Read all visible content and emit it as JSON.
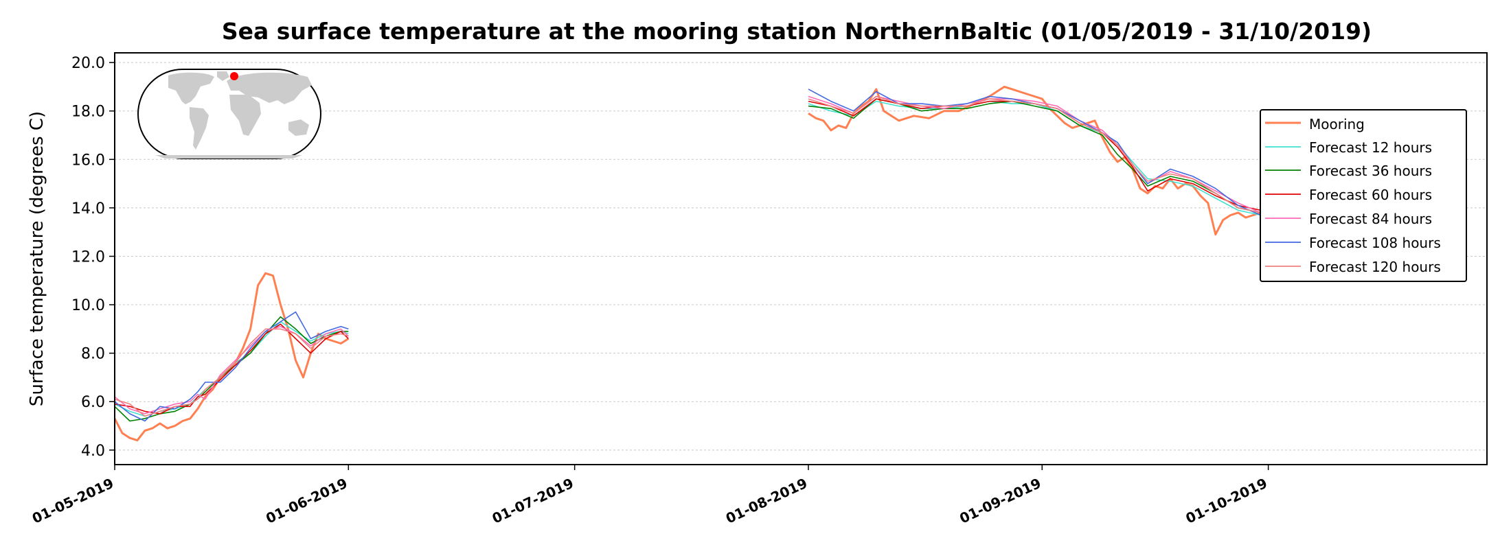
{
  "chart_data": {
    "type": "line",
    "title": "Sea surface temperature at the mooring station NorthernBaltic (01/05/2019 - 31/10/2019)",
    "xlabel": "",
    "ylabel": "Surface temperature (degrees C)",
    "xlim": [
      "2019-05-01",
      "2019-10-31"
    ],
    "ylim": [
      3.4,
      20.4
    ],
    "yticks": [
      4.0,
      6.0,
      8.0,
      10.0,
      12.0,
      14.0,
      16.0,
      18.0,
      20.0
    ],
    "ytick_labels": [
      "4.0",
      "6.0",
      "8.0",
      "10.0",
      "12.0",
      "14.0",
      "16.0",
      "18.0",
      "20.0"
    ],
    "xticks": [
      "2019-05-01",
      "2019-06-01",
      "2019-07-01",
      "2019-08-01",
      "2019-09-01",
      "2019-10-01"
    ],
    "xtick_labels": [
      "01-05-2019",
      "01-06-2019",
      "01-07-2019",
      "01-08-2019",
      "01-09-2019",
      "01-10-2019"
    ],
    "grid": "horizontal dotted",
    "legend_position": "right",
    "inset": "world-map-with-station-marker",
    "colors": {
      "mooring": "#ff7f50",
      "f12": "#40e0d0",
      "f36": "#008000",
      "f60": "#e00000",
      "f84": "#ff69b4",
      "f108": "#4169e1",
      "f120": "#f08080",
      "grid": "#c8c8c8",
      "land": "#cccccc",
      "marker": "#ff0000"
    },
    "series": [
      {
        "name": "Mooring",
        "color": "#ff7f50",
        "width": 3,
        "segments": [
          {
            "x": [
              "2019-05-01",
              "2019-05-02",
              "2019-05-03",
              "2019-05-04",
              "2019-05-05",
              "2019-05-06",
              "2019-05-07",
              "2019-05-08",
              "2019-05-09",
              "2019-05-10",
              "2019-05-11",
              "2019-05-12",
              "2019-05-13",
              "2019-05-14",
              "2019-05-15",
              "2019-05-16",
              "2019-05-17",
              "2019-05-18",
              "2019-05-19",
              "2019-05-20",
              "2019-05-21",
              "2019-05-22",
              "2019-05-23",
              "2019-05-24",
              "2019-05-25",
              "2019-05-26",
              "2019-05-27",
              "2019-05-28",
              "2019-05-29",
              "2019-05-30",
              "2019-05-31",
              "2019-06-01"
            ],
            "y": [
              5.3,
              4.7,
              4.5,
              4.4,
              4.8,
              4.9,
              5.1,
              4.9,
              5.0,
              5.2,
              5.3,
              5.7,
              6.2,
              6.5,
              7.0,
              7.3,
              7.6,
              8.2,
              9.0,
              10.8,
              11.3,
              11.2,
              10.0,
              9.0,
              7.7,
              7.0,
              8.0,
              8.8,
              8.6,
              8.5,
              8.4,
              8.6
            ]
          },
          {
            "x": [
              "2019-08-01",
              "2019-08-02",
              "2019-08-03",
              "2019-08-04",
              "2019-08-05",
              "2019-08-06",
              "2019-08-07",
              "2019-08-08",
              "2019-08-09",
              "2019-08-10",
              "2019-08-11",
              "2019-08-13",
              "2019-08-15",
              "2019-08-17",
              "2019-08-19",
              "2019-08-21",
              "2019-08-23",
              "2019-08-25",
              "2019-08-27",
              "2019-08-28",
              "2019-08-29",
              "2019-08-30",
              "2019-08-31",
              "2019-09-01",
              "2019-09-02",
              "2019-09-03",
              "2019-09-04",
              "2019-09-05",
              "2019-09-06",
              "2019-09-07",
              "2019-09-08",
              "2019-09-09",
              "2019-09-10",
              "2019-09-11",
              "2019-09-12",
              "2019-09-13",
              "2019-09-14",
              "2019-09-15",
              "2019-09-16",
              "2019-09-17",
              "2019-09-18",
              "2019-09-19",
              "2019-09-20",
              "2019-09-21",
              "2019-09-22",
              "2019-09-23",
              "2019-09-24",
              "2019-09-25",
              "2019-09-26",
              "2019-09-27",
              "2019-09-28",
              "2019-09-29",
              "2019-09-30",
              "2019-10-01"
            ],
            "y": [
              17.9,
              17.7,
              17.6,
              17.2,
              17.4,
              17.3,
              17.9,
              18.2,
              18.4,
              18.9,
              18.0,
              17.6,
              17.8,
              17.7,
              18.0,
              18.0,
              18.3,
              18.6,
              19.0,
              18.9,
              18.8,
              18.7,
              18.6,
              18.5,
              18.1,
              17.8,
              17.5,
              17.3,
              17.4,
              17.5,
              17.6,
              16.9,
              16.3,
              15.9,
              16.1,
              15.6,
              14.8,
              14.6,
              14.9,
              14.8,
              15.2,
              14.8,
              15.0,
              14.9,
              14.5,
              14.2,
              12.9,
              13.5,
              13.7,
              13.8,
              13.6,
              13.7,
              13.8,
              13.6
            ]
          }
        ]
      },
      {
        "name": "Forecast 12 hours",
        "color": "#40e0d0",
        "width": 1.6,
        "segments": [
          {
            "x": [
              "2019-05-01",
              "2019-05-03",
              "2019-05-05",
              "2019-05-07",
              "2019-05-09",
              "2019-05-11",
              "2019-05-12",
              "2019-05-13",
              "2019-05-15",
              "2019-05-17",
              "2019-05-19",
              "2019-05-21",
              "2019-05-23",
              "2019-05-25",
              "2019-05-27",
              "2019-05-29",
              "2019-05-31",
              "2019-06-01"
            ],
            "y": [
              5.9,
              5.6,
              5.4,
              5.6,
              5.7,
              5.9,
              6.2,
              6.5,
              7.0,
              7.6,
              8.0,
              8.7,
              9.3,
              8.9,
              8.5,
              8.8,
              8.9,
              8.8
            ]
          },
          {
            "x": [
              "2019-08-01",
              "2019-08-04",
              "2019-08-07",
              "2019-08-10",
              "2019-08-13",
              "2019-08-16",
              "2019-08-19",
              "2019-08-22",
              "2019-08-25",
              "2019-08-28",
              "2019-08-31",
              "2019-09-03",
              "2019-09-06",
              "2019-09-09",
              "2019-09-11",
              "2019-09-13",
              "2019-09-15",
              "2019-09-18",
              "2019-09-21",
              "2019-09-24",
              "2019-09-27",
              "2019-09-30",
              "2019-10-01"
            ],
            "y": [
              18.3,
              18.0,
              17.8,
              18.4,
              18.2,
              18.1,
              18.1,
              18.2,
              18.4,
              18.3,
              18.3,
              18.0,
              17.4,
              17.1,
              16.6,
              15.9,
              15.2,
              15.1,
              14.9,
              14.4,
              13.9,
              13.7,
              13.6
            ]
          }
        ]
      },
      {
        "name": "Forecast 36 hours",
        "color": "#008000",
        "width": 1.6,
        "segments": [
          {
            "x": [
              "2019-05-01",
              "2019-05-03",
              "2019-05-05",
              "2019-05-07",
              "2019-05-09",
              "2019-05-11",
              "2019-05-12",
              "2019-05-13",
              "2019-05-15",
              "2019-05-17",
              "2019-05-19",
              "2019-05-21",
              "2019-05-23",
              "2019-05-25",
              "2019-05-27",
              "2019-05-29",
              "2019-05-31",
              "2019-06-01"
            ],
            "y": [
              5.8,
              5.2,
              5.3,
              5.5,
              5.6,
              5.9,
              6.1,
              6.4,
              7.0,
              7.5,
              8.0,
              8.8,
              9.5,
              9.0,
              8.4,
              8.7,
              8.9,
              8.9
            ]
          },
          {
            "x": [
              "2019-08-01",
              "2019-08-04",
              "2019-08-07",
              "2019-08-10",
              "2019-08-13",
              "2019-08-16",
              "2019-08-19",
              "2019-08-22",
              "2019-08-25",
              "2019-08-28",
              "2019-08-31",
              "2019-09-03",
              "2019-09-06",
              "2019-09-09",
              "2019-09-11",
              "2019-09-13",
              "2019-09-15",
              "2019-09-18",
              "2019-09-21",
              "2019-09-24",
              "2019-09-27",
              "2019-09-30",
              "2019-10-01"
            ],
            "y": [
              18.2,
              18.1,
              17.7,
              18.5,
              18.3,
              18.0,
              18.1,
              18.1,
              18.3,
              18.4,
              18.2,
              18.0,
              17.4,
              17.0,
              16.2,
              15.6,
              14.9,
              15.3,
              15.1,
              14.6,
              14.0,
              13.8,
              13.7
            ]
          }
        ]
      },
      {
        "name": "Forecast 60 hours",
        "color": "#e00000",
        "width": 1.6,
        "segments": [
          {
            "x": [
              "2019-05-01",
              "2019-05-03",
              "2019-05-05",
              "2019-05-07",
              "2019-05-09",
              "2019-05-11",
              "2019-05-12",
              "2019-05-13",
              "2019-05-15",
              "2019-05-17",
              "2019-05-19",
              "2019-05-21",
              "2019-05-23",
              "2019-05-25",
              "2019-05-27",
              "2019-05-29",
              "2019-05-31",
              "2019-06-01"
            ],
            "y": [
              5.9,
              5.8,
              5.6,
              5.5,
              5.8,
              5.8,
              6.2,
              6.3,
              6.9,
              7.5,
              8.1,
              8.8,
              9.2,
              8.6,
              8.0,
              8.6,
              8.9,
              8.6
            ]
          },
          {
            "x": [
              "2019-08-01",
              "2019-08-04",
              "2019-08-07",
              "2019-08-10",
              "2019-08-13",
              "2019-08-16",
              "2019-08-19",
              "2019-08-22",
              "2019-08-25",
              "2019-08-28",
              "2019-08-31",
              "2019-09-03",
              "2019-09-06",
              "2019-09-09",
              "2019-09-11",
              "2019-09-13",
              "2019-09-15",
              "2019-09-18",
              "2019-09-21",
              "2019-09-24",
              "2019-09-27",
              "2019-09-30",
              "2019-10-01"
            ],
            "y": [
              18.4,
              18.2,
              17.8,
              18.5,
              18.3,
              18.1,
              18.2,
              18.2,
              18.4,
              18.4,
              18.3,
              18.1,
              17.5,
              17.1,
              16.5,
              15.7,
              14.7,
              15.2,
              15.0,
              14.5,
              14.1,
              13.9,
              13.8
            ]
          }
        ]
      },
      {
        "name": "Forecast 84 hours",
        "color": "#ff69b4",
        "width": 1.6,
        "segments": [
          {
            "x": [
              "2019-05-01",
              "2019-05-03",
              "2019-05-05",
              "2019-05-07",
              "2019-05-09",
              "2019-05-11",
              "2019-05-12",
              "2019-05-13",
              "2019-05-15",
              "2019-05-17",
              "2019-05-19",
              "2019-05-21",
              "2019-05-23",
              "2019-05-25",
              "2019-05-27",
              "2019-05-29",
              "2019-05-31",
              "2019-06-01"
            ],
            "y": [
              6.2,
              5.7,
              5.5,
              5.7,
              5.9,
              6.0,
              6.3,
              6.1,
              7.1,
              7.7,
              8.3,
              8.9,
              9.1,
              8.8,
              8.3,
              8.8,
              9.0,
              8.7
            ]
          },
          {
            "x": [
              "2019-08-01",
              "2019-08-04",
              "2019-08-07",
              "2019-08-10",
              "2019-08-13",
              "2019-08-16",
              "2019-08-19",
              "2019-08-22",
              "2019-08-25",
              "2019-08-28",
              "2019-08-31",
              "2019-09-03",
              "2019-09-06",
              "2019-09-09",
              "2019-09-11",
              "2019-09-13",
              "2019-09-15",
              "2019-09-18",
              "2019-09-21",
              "2019-09-24",
              "2019-09-27",
              "2019-09-30",
              "2019-10-01"
            ],
            "y": [
              18.6,
              18.3,
              17.9,
              18.6,
              18.4,
              18.2,
              18.1,
              18.3,
              18.5,
              18.5,
              18.4,
              18.2,
              17.6,
              17.2,
              16.6,
              15.8,
              15.0,
              15.5,
              15.2,
              14.7,
              14.2,
              13.8,
              13.7
            ]
          }
        ]
      },
      {
        "name": "Forecast 108 hours",
        "color": "#4169e1",
        "width": 1.6,
        "segments": [
          {
            "x": [
              "2019-05-01",
              "2019-05-03",
              "2019-05-05",
              "2019-05-07",
              "2019-05-09",
              "2019-05-11",
              "2019-05-12",
              "2019-05-13",
              "2019-05-15",
              "2019-05-17",
              "2019-05-19",
              "2019-05-21",
              "2019-05-23",
              "2019-05-25",
              "2019-05-27",
              "2019-05-29",
              "2019-05-31",
              "2019-06-01"
            ],
            "y": [
              6.0,
              5.5,
              5.2,
              5.8,
              5.7,
              6.1,
              6.4,
              6.8,
              6.8,
              7.4,
              8.2,
              8.9,
              9.3,
              9.7,
              8.6,
              8.9,
              9.1,
              9.0
            ]
          },
          {
            "x": [
              "2019-08-01",
              "2019-08-04",
              "2019-08-07",
              "2019-08-10",
              "2019-08-13",
              "2019-08-16",
              "2019-08-19",
              "2019-08-22",
              "2019-08-25",
              "2019-08-28",
              "2019-08-31",
              "2019-09-03",
              "2019-09-06",
              "2019-09-09",
              "2019-09-11",
              "2019-09-13",
              "2019-09-15",
              "2019-09-18",
              "2019-09-21",
              "2019-09-24",
              "2019-09-27",
              "2019-09-30",
              "2019-10-01"
            ],
            "y": [
              18.9,
              18.4,
              18.0,
              18.8,
              18.3,
              18.3,
              18.2,
              18.3,
              18.6,
              18.5,
              18.3,
              18.1,
              17.6,
              17.1,
              16.7,
              15.8,
              15.0,
              15.6,
              15.3,
              14.8,
              14.1,
              13.7,
              13.5
            ]
          }
        ]
      },
      {
        "name": "Forecast 120 hours",
        "color": "#f08080",
        "width": 1.6,
        "segments": [
          {
            "x": [
              "2019-05-01",
              "2019-05-03",
              "2019-05-05",
              "2019-05-07",
              "2019-05-09",
              "2019-05-11",
              "2019-05-12",
              "2019-05-13",
              "2019-05-15",
              "2019-05-17",
              "2019-05-19",
              "2019-05-21",
              "2019-05-23",
              "2019-05-25",
              "2019-05-27",
              "2019-05-29",
              "2019-05-31",
              "2019-06-01"
            ],
            "y": [
              6.1,
              5.9,
              5.4,
              5.6,
              5.8,
              5.9,
              6.1,
              6.5,
              7.0,
              7.6,
              8.4,
              9.0,
              9.0,
              8.8,
              8.2,
              8.7,
              8.8,
              8.7
            ]
          },
          {
            "x": [
              "2019-08-01",
              "2019-08-04",
              "2019-08-07",
              "2019-08-10",
              "2019-08-13",
              "2019-08-16",
              "2019-08-19",
              "2019-08-22",
              "2019-08-25",
              "2019-08-28",
              "2019-08-31",
              "2019-09-03",
              "2019-09-06",
              "2019-09-09",
              "2019-09-11",
              "2019-09-13",
              "2019-09-15",
              "2019-09-18",
              "2019-09-21",
              "2019-09-24",
              "2019-09-27",
              "2019-09-30",
              "2019-10-01"
            ],
            "y": [
              18.5,
              18.2,
              17.9,
              18.6,
              18.3,
              18.2,
              18.2,
              18.2,
              18.5,
              18.4,
              18.3,
              18.1,
              17.5,
              17.1,
              16.6,
              15.8,
              15.1,
              15.4,
              15.2,
              14.6,
              14.0,
              13.8,
              13.6
            ]
          }
        ]
      }
    ]
  }
}
